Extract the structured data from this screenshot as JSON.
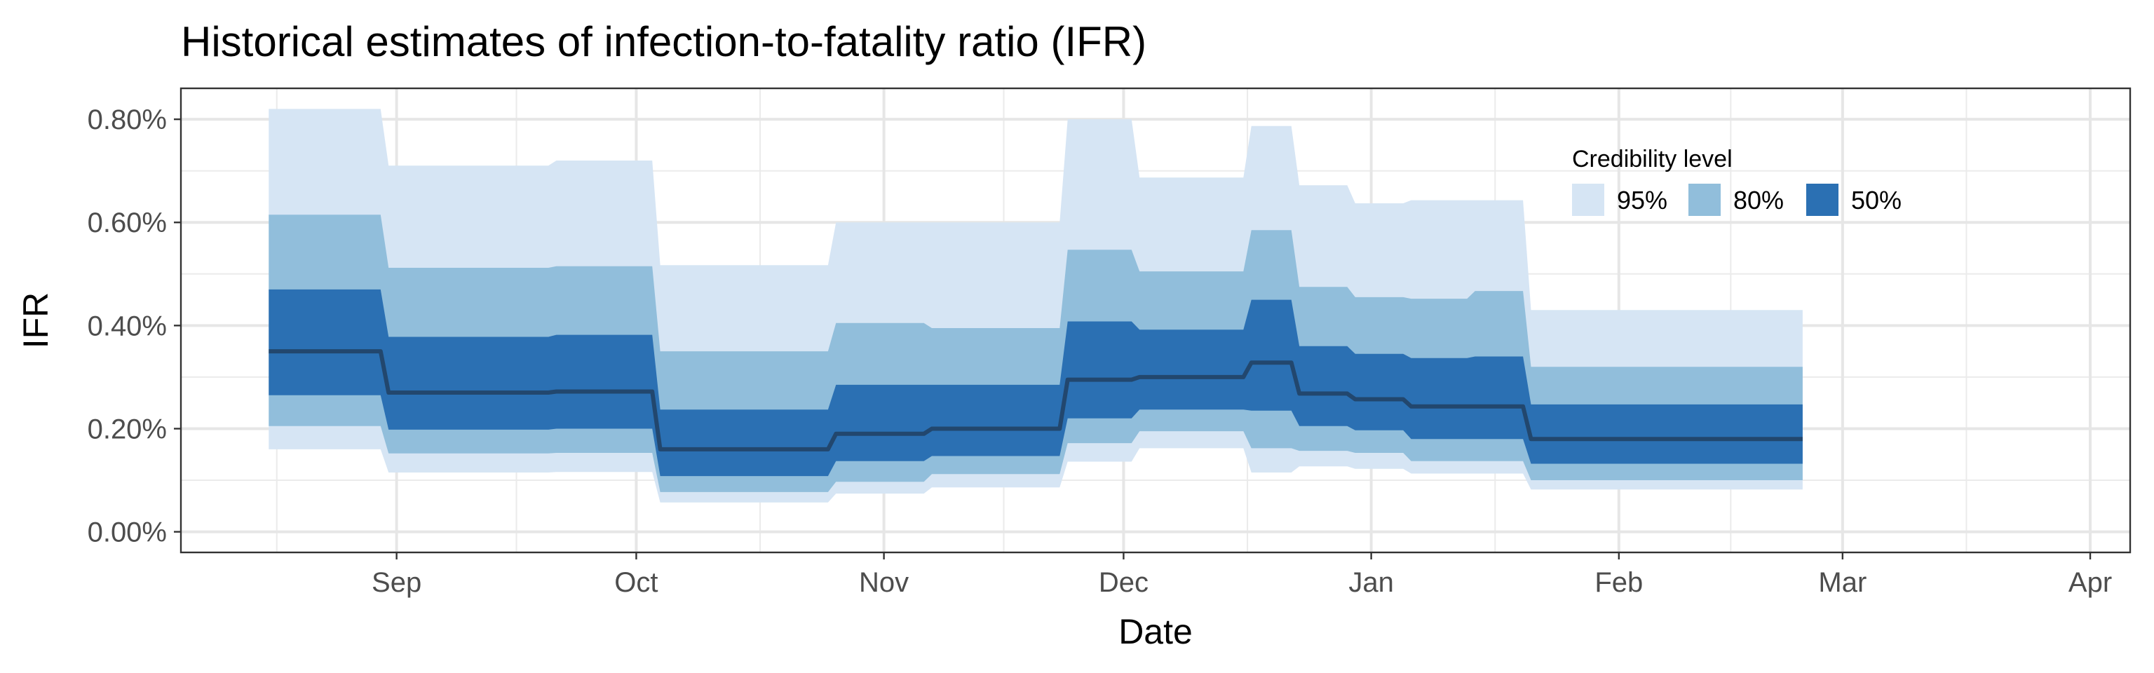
{
  "chart_data": {
    "type": "area",
    "title": "Historical estimates of infection-to-fatality ratio (IFR)",
    "xlabel": "Date",
    "ylabel": "IFR",
    "x_ticks": [
      {
        "date": "2020-09-01",
        "label": "Sep"
      },
      {
        "date": "2020-10-01",
        "label": "Oct"
      },
      {
        "date": "2020-11-01",
        "label": "Nov"
      },
      {
        "date": "2020-12-01",
        "label": "Dec"
      },
      {
        "date": "2021-01-01",
        "label": "Jan"
      },
      {
        "date": "2021-02-01",
        "label": "Feb"
      },
      {
        "date": "2021-03-01",
        "label": "Mar"
      },
      {
        "date": "2021-04-01",
        "label": "Apr"
      }
    ],
    "xlim": [
      "2020-08-05",
      "2021-04-06"
    ],
    "y_ticks": [
      {
        "value": 0.0,
        "label": "0.00%"
      },
      {
        "value": 0.2,
        "label": "0.20%"
      },
      {
        "value": 0.4,
        "label": "0.40%"
      },
      {
        "value": 0.6,
        "label": "0.60%"
      },
      {
        "value": 0.8,
        "label": "0.80%"
      }
    ],
    "ylim": [
      -0.04,
      0.86
    ],
    "grid": true,
    "legend": {
      "title": "Credibility level",
      "placement": "top-right",
      "entries": [
        {
          "label": "95%",
          "color": "#d6e5f4"
        },
        {
          "label": "80%",
          "color": "#91bedb"
        },
        {
          "label": "50%",
          "color": "#2b70b3"
        }
      ]
    },
    "median_color": "#22476e",
    "series": [
      {
        "date": "2020-08-16",
        "median": 0.35,
        "lo50": 0.265,
        "hi50": 0.47,
        "lo80": 0.205,
        "hi80": 0.615,
        "lo95": 0.16,
        "hi95": 0.82
      },
      {
        "date": "2020-08-30",
        "median": 0.27,
        "lo50": 0.198,
        "hi50": 0.378,
        "lo80": 0.152,
        "hi80": 0.512,
        "lo95": 0.115,
        "hi95": 0.71
      },
      {
        "date": "2020-09-20",
        "median": 0.272,
        "lo50": 0.2,
        "hi50": 0.382,
        "lo80": 0.153,
        "hi80": 0.515,
        "lo95": 0.116,
        "hi95": 0.72
      },
      {
        "date": "2020-10-03",
        "median": 0.16,
        "lo50": 0.108,
        "hi50": 0.237,
        "lo80": 0.077,
        "hi80": 0.35,
        "lo95": 0.057,
        "hi95": 0.517
      },
      {
        "date": "2020-10-25",
        "median": 0.19,
        "lo50": 0.137,
        "hi50": 0.285,
        "lo80": 0.097,
        "hi80": 0.405,
        "lo95": 0.074,
        "hi95": 0.6
      },
      {
        "date": "2020-11-06",
        "median": 0.2,
        "lo50": 0.147,
        "hi50": 0.285,
        "lo80": 0.112,
        "hi80": 0.395,
        "lo95": 0.086,
        "hi95": 0.6
      },
      {
        "date": "2020-11-23",
        "median": 0.295,
        "lo50": 0.22,
        "hi50": 0.408,
        "lo80": 0.172,
        "hi80": 0.547,
        "lo95": 0.136,
        "hi95": 0.8
      },
      {
        "date": "2020-12-02",
        "median": 0.3,
        "lo50": 0.237,
        "hi50": 0.392,
        "lo80": 0.195,
        "hi80": 0.505,
        "lo95": 0.162,
        "hi95": 0.687
      },
      {
        "date": "2020-12-16",
        "median": 0.328,
        "lo50": 0.235,
        "hi50": 0.45,
        "lo80": 0.162,
        "hi80": 0.585,
        "lo95": 0.115,
        "hi95": 0.787
      },
      {
        "date": "2020-12-22",
        "median": 0.268,
        "lo50": 0.205,
        "hi50": 0.36,
        "lo80": 0.157,
        "hi80": 0.475,
        "lo95": 0.127,
        "hi95": 0.672
      },
      {
        "date": "2020-12-29",
        "median": 0.257,
        "lo50": 0.197,
        "hi50": 0.345,
        "lo80": 0.153,
        "hi80": 0.455,
        "lo95": 0.122,
        "hi95": 0.637
      },
      {
        "date": "2021-01-05",
        "median": 0.243,
        "lo50": 0.18,
        "hi50": 0.337,
        "lo80": 0.137,
        "hi80": 0.452,
        "lo95": 0.113,
        "hi95": 0.643
      },
      {
        "date": "2021-01-13",
        "median": 0.243,
        "lo50": 0.18,
        "hi50": 0.34,
        "lo80": 0.137,
        "hi80": 0.467,
        "lo95": 0.113,
        "hi95": 0.643
      },
      {
        "date": "2021-01-20",
        "median": 0.18,
        "lo50": 0.132,
        "hi50": 0.247,
        "lo80": 0.1,
        "hi80": 0.32,
        "lo95": 0.082,
        "hi95": 0.43
      },
      {
        "date": "2021-02-23",
        "median": 0.18,
        "lo50": 0.132,
        "hi50": 0.247,
        "lo80": 0.1,
        "hi80": 0.32,
        "lo95": 0.082,
        "hi95": 0.43
      }
    ]
  }
}
